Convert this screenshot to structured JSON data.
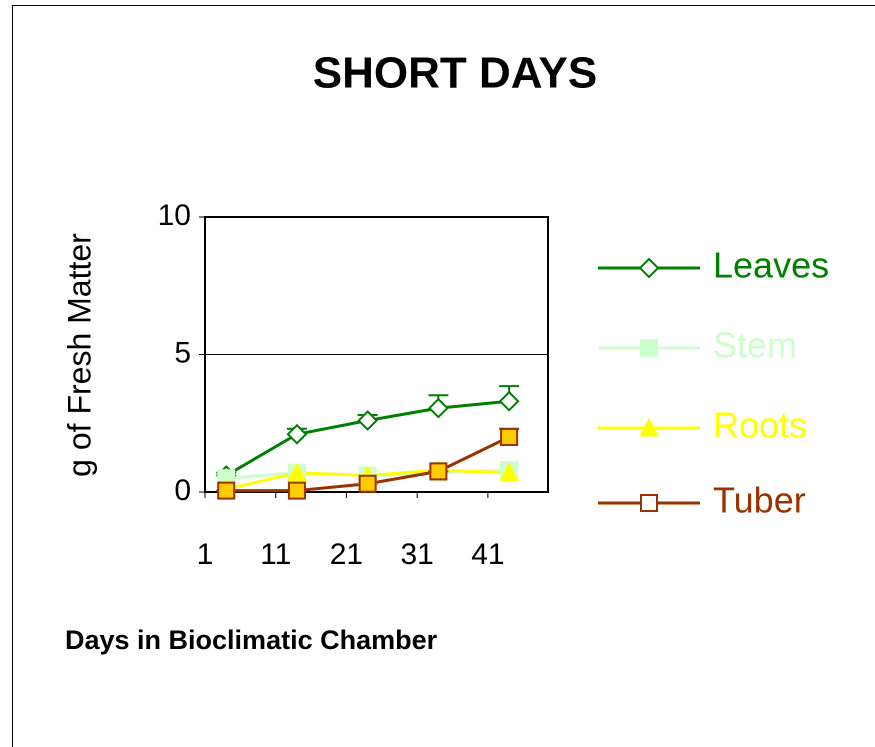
{
  "chart_data": {
    "type": "line",
    "title": "SHORT DAYS",
    "xlabel": "Days in Bioclimatic Chamber",
    "ylabel": "g of Fresh Matter",
    "x": [
      4,
      14,
      24,
      34,
      44
    ],
    "xlim": [
      1,
      49.5
    ],
    "xticks": [
      1,
      11,
      21,
      31,
      41
    ],
    "ylim": [
      0,
      10
    ],
    "yticks": [
      0,
      5,
      10
    ],
    "grid": true,
    "legend": "right",
    "series": [
      {
        "name": "Leaves",
        "color": "#008000",
        "marker": "diamond",
        "marker_fill": "#ffffff",
        "values": [
          0.6,
          2.1,
          2.6,
          3.05,
          3.3
        ],
        "errors": [
          0.1,
          0.2,
          0.2,
          0.47,
          0.55
        ]
      },
      {
        "name": "Stem",
        "color": "#ccffcc",
        "marker": "square",
        "marker_fill": "#ccffcc",
        "values": [
          0.5,
          0.7,
          0.6,
          0.7,
          0.8
        ]
      },
      {
        "name": "Roots",
        "color": "#ffff00",
        "marker": "triangle",
        "marker_fill": "#ffff00",
        "values": [
          0.1,
          0.7,
          0.6,
          0.8,
          0.7
        ]
      },
      {
        "name": "Tuber",
        "color": "#993300",
        "marker": "square",
        "marker_fill": "#ffcc00",
        "values": [
          0.05,
          0.05,
          0.3,
          0.75,
          2.0
        ],
        "errors": [
          0,
          0,
          0,
          0,
          0.3
        ]
      }
    ]
  }
}
